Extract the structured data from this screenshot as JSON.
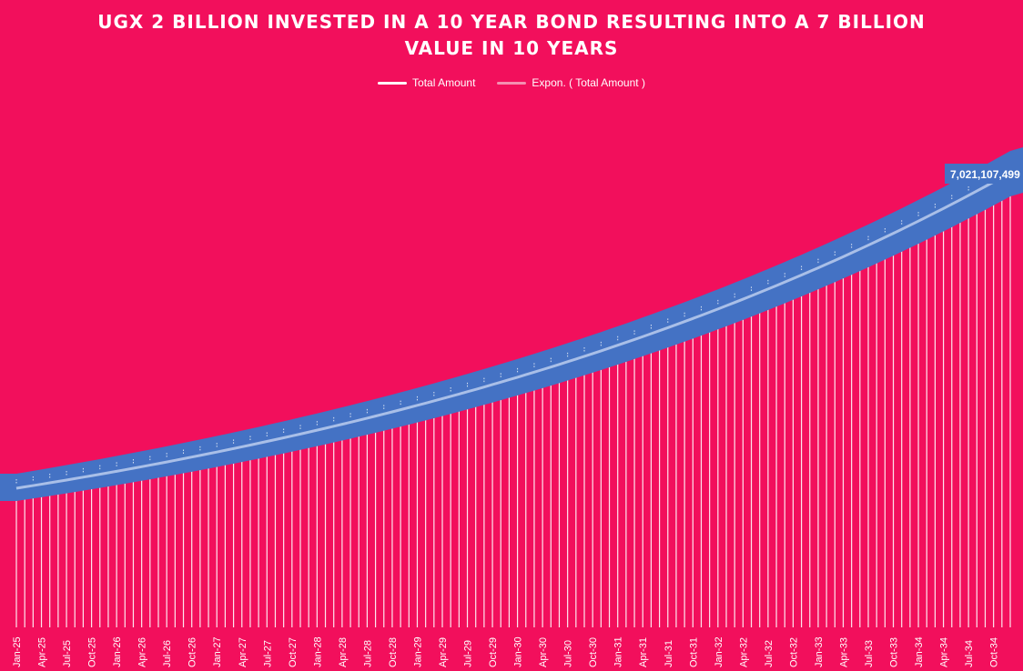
{
  "colors": {
    "background": "#f20f5c",
    "band": "#4472c4",
    "line": "#ffffff",
    "trend": "#a9bfe8"
  },
  "chart_data": {
    "type": "line",
    "title_lines": [
      "UGX 2 BILLION INVESTED IN A 10 YEAR BOND RESULTING INTO A 7 BILLION",
      "VALUE IN 10 YEARS"
    ],
    "legend": {
      "position": "top",
      "entries": [
        "Total Amount",
        "Expon. ( Total Amount )"
      ]
    },
    "series": [
      {
        "name": "Total Amount",
        "start_value": 2000000000,
        "end_value": 7021107499,
        "growth": "exponential",
        "points": 120
      },
      {
        "name": "Expon. ( Total Amount )",
        "trendline": "exponential"
      }
    ],
    "end_label": "7,021,107,499",
    "x_tick_labels": [
      "Jan-25",
      "Apr-25",
      "Jul-25",
      "Oct-25",
      "Jan-26",
      "Apr-26",
      "Jul-26",
      "Oct-26",
      "Jan-27",
      "Apr-27",
      "Jul-27",
      "Oct-27",
      "Jan-28",
      "Apr-28",
      "Jul-28",
      "Oct-28",
      "Jan-29",
      "Apr-29",
      "Jul-29",
      "Oct-29",
      "Jan-30",
      "Apr-30",
      "Jul-30",
      "Oct-30",
      "Jan-31",
      "Apr-31",
      "Jul-31",
      "Oct-31",
      "Jan-32",
      "Apr-32",
      "Jul-32",
      "Oct-32",
      "Jan-33",
      "Apr-33",
      "Jul-33",
      "Oct-33",
      "Jan-34",
      "Apr-34",
      "Jul-34",
      "Oct-34"
    ],
    "x_range": [
      "Jan-25",
      "Dec-34"
    ],
    "y_axis_visible": false,
    "grid": false
  }
}
